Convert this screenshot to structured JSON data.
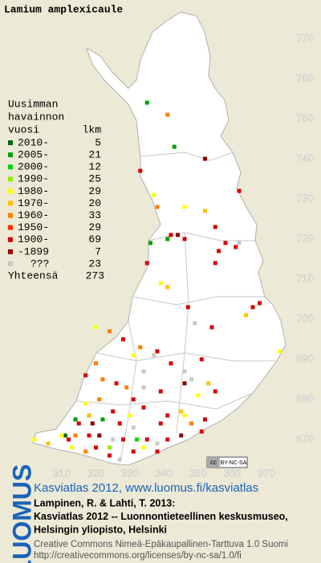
{
  "title": "Lamium amplexicaule",
  "legend": {
    "heading": [
      "Uusimman",
      "havainnon",
      "vuosi"
    ],
    "count_heading": "lkm",
    "entries": [
      {
        "label": "2010-",
        "count": 5,
        "color": "#006400"
      },
      {
        "label": "2005-",
        "count": 21,
        "color": "#00a000"
      },
      {
        "label": "2000-",
        "count": 12,
        "color": "#00d800"
      },
      {
        "label": "1990-",
        "count": 25,
        "color": "#90f000"
      },
      {
        "label": "1980-",
        "count": 29,
        "color": "#ffff00"
      },
      {
        "label": "1970-",
        "count": 20,
        "color": "#ffc000"
      },
      {
        "label": "1960-",
        "count": 33,
        "color": "#ff8000"
      },
      {
        "label": "1950-",
        "count": 29,
        "color": "#ff3000"
      },
      {
        "label": "1900-",
        "count": 69,
        "color": "#d80000"
      },
      {
        "label": "-1899",
        "count": 7,
        "color": "#900000"
      },
      {
        "label": "???",
        "count": 23,
        "color": "#c8c8c8"
      }
    ],
    "total_label": "Yhteensä",
    "total": 273
  },
  "map": {
    "xlim": [
      310,
      370
    ],
    "ylim": [
      670,
      770
    ],
    "xticks": [
      310,
      320,
      330,
      340,
      350,
      360,
      370
    ],
    "yticks": [
      670,
      680,
      690,
      700,
      710,
      720,
      730,
      740,
      750,
      760,
      770
    ],
    "points": [
      [
        335,
        754,
        1
      ],
      [
        341,
        751,
        6
      ],
      [
        343,
        743,
        1
      ],
      [
        352,
        740,
        9
      ],
      [
        333,
        737,
        8
      ],
      [
        362,
        732,
        8
      ],
      [
        337,
        731,
        4
      ],
      [
        338,
        728,
        6
      ],
      [
        346,
        728,
        4
      ],
      [
        352,
        727,
        5
      ],
      [
        355,
        723,
        8
      ],
      [
        342,
        721,
        8
      ],
      [
        344,
        721,
        9
      ],
      [
        341,
        720,
        1
      ],
      [
        346,
        720,
        8
      ],
      [
        336,
        719,
        1
      ],
      [
        358,
        719,
        8
      ],
      [
        362,
        719,
        10
      ],
      [
        361,
        718,
        8
      ],
      [
        356,
        717,
        8
      ],
      [
        355,
        714,
        8
      ],
      [
        335,
        714,
        8
      ],
      [
        339,
        709,
        4
      ],
      [
        341,
        708,
        5
      ],
      [
        368,
        704,
        8
      ],
      [
        366,
        703,
        8
      ],
      [
        364,
        701,
        5
      ],
      [
        347,
        703,
        8
      ],
      [
        320,
        698,
        4
      ],
      [
        324,
        697,
        6
      ],
      [
        349,
        699,
        10
      ],
      [
        354,
        698,
        8
      ],
      [
        374,
        692,
        4
      ],
      [
        328,
        695,
        8
      ],
      [
        333,
        693,
        6
      ],
      [
        337,
        691,
        10
      ],
      [
        338,
        692,
        8
      ],
      [
        342,
        689,
        8
      ],
      [
        331,
        691,
        4
      ],
      [
        351,
        690,
        8
      ],
      [
        346,
        687,
        10
      ],
      [
        334,
        687,
        10
      ],
      [
        320,
        689,
        6
      ],
      [
        317,
        686,
        8
      ],
      [
        322,
        685,
        6
      ],
      [
        326,
        684,
        8
      ],
      [
        329,
        683,
        6
      ],
      [
        331,
        680,
        8
      ],
      [
        334,
        683,
        10
      ],
      [
        339,
        682,
        8
      ],
      [
        346,
        684,
        9
      ],
      [
        348,
        685,
        10
      ],
      [
        353,
        684,
        5
      ],
      [
        355,
        682,
        8
      ],
      [
        350,
        681,
        4
      ],
      [
        345,
        677,
        5
      ],
      [
        346,
        676,
        4
      ],
      [
        341,
        676,
        8
      ],
      [
        334,
        678,
        8
      ],
      [
        330,
        676,
        4
      ],
      [
        325,
        677,
        8
      ],
      [
        321,
        680,
        6
      ],
      [
        317,
        679,
        4
      ],
      [
        318,
        676,
        5
      ],
      [
        314,
        675,
        1
      ],
      [
        315,
        674,
        8
      ],
      [
        319,
        674,
        9
      ],
      [
        322,
        675,
        1
      ],
      [
        327,
        674,
        8
      ],
      [
        331,
        673,
        10
      ],
      [
        339,
        674,
        8
      ],
      [
        348,
        674,
        6
      ],
      [
        352,
        675,
        8
      ],
      [
        311,
        671,
        0
      ],
      [
        310,
        671,
        4
      ],
      [
        312,
        670,
        8
      ],
      [
        314,
        671,
        6
      ],
      [
        318,
        671,
        8
      ],
      [
        321,
        671,
        9
      ],
      [
        325,
        670,
        10
      ],
      [
        328,
        670,
        8
      ],
      [
        332,
        670,
        2
      ],
      [
        335,
        670,
        8
      ],
      [
        338,
        669,
        10
      ],
      [
        341,
        670,
        8
      ],
      [
        345,
        671,
        9
      ],
      [
        351,
        672,
        8
      ],
      [
        313,
        668,
        4
      ],
      [
        317,
        667,
        6
      ],
      [
        320,
        668,
        8
      ],
      [
        324,
        666,
        8
      ],
      [
        327,
        665,
        10
      ],
      [
        331,
        667,
        8
      ],
      [
        334,
        668,
        4
      ],
      [
        338,
        667,
        8
      ],
      [
        302,
        670,
        4
      ],
      [
        306,
        669,
        5
      ],
      [
        324,
        668,
        3
      ]
    ]
  },
  "badge": [
    "cc",
    "BY-NC-SA"
  ],
  "footer": {
    "logo": "LUOMUS",
    "link": "Kasviatlas 2012, www.luomus.fi/kasviatlas",
    "citation": [
      "Lampinen, R. & Lahti, T. 2013:",
      "Kasviatlas 2012 -- Luonnontieteellinen keskusmuseo,",
      "Helsingin yliopisto, Helsinki"
    ],
    "license": [
      "Creative Commons Nimeä-Epäkaupallinen-Tarttuva 1.0 Suomi",
      "http://creativecommons.org/licenses/by-nc-sa/1.0/fi"
    ]
  }
}
